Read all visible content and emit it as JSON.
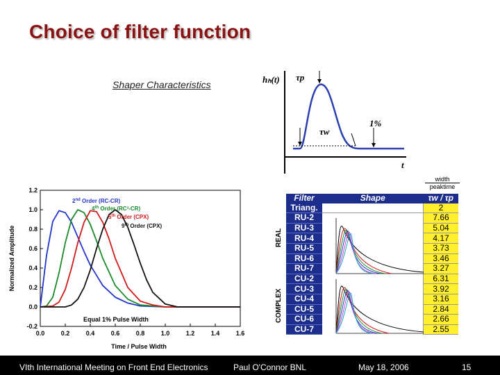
{
  "slide": {
    "title": "Choice of  filter function",
    "shaper_label": "Shaper Characteristics"
  },
  "pulse_diagram": {
    "ylabel": "hₕ(t)",
    "peak_symbol": "τp",
    "width_symbol": "τw",
    "percent_label": "1%",
    "xlabel": "t"
  },
  "chart_data": {
    "type": "line",
    "xlabel": "Time / Pulse Width",
    "ylabel": "Normalized Amplitude",
    "xlim": [
      0.0,
      1.6
    ],
    "ylim": [
      -0.2,
      1.2
    ],
    "x_ticks": [
      "0.0",
      "0.2",
      "0.4",
      "0.6",
      "0.8",
      "1.0",
      "1.2",
      "1.4",
      "1.6"
    ],
    "y_ticks": [
      "-0.2",
      "0.0",
      "0.2",
      "0.4",
      "0.6",
      "0.8",
      "1.0",
      "1.2"
    ],
    "annotation": "Equal 1% Pulse Width",
    "grid": false,
    "series": [
      {
        "name": "2nd Order (RC-CR)",
        "color": "#2233cc",
        "x": [
          0.0,
          0.05,
          0.1,
          0.15,
          0.2,
          0.25,
          0.3,
          0.35,
          0.4,
          0.5,
          0.6,
          0.7,
          0.8,
          1.0,
          1.2,
          1.6
        ],
        "y": [
          0.0,
          0.53,
          0.88,
          0.99,
          0.97,
          0.87,
          0.72,
          0.57,
          0.43,
          0.22,
          0.1,
          0.04,
          0.01,
          0.0,
          0.0,
          0.0
        ]
      },
      {
        "name": "4th Order (RC³-CR)",
        "color": "#1a8a2a",
        "x": [
          0.0,
          0.05,
          0.1,
          0.15,
          0.2,
          0.25,
          0.3,
          0.35,
          0.4,
          0.45,
          0.5,
          0.6,
          0.7,
          0.8,
          0.9,
          1.0,
          1.2,
          1.6
        ],
        "y": [
          0.0,
          0.01,
          0.1,
          0.35,
          0.66,
          0.9,
          1.0,
          0.97,
          0.85,
          0.68,
          0.5,
          0.22,
          0.08,
          0.02,
          0.01,
          0.0,
          0.0,
          0.0
        ]
      },
      {
        "name": "5th Order (CPX)",
        "color": "#d11a1a",
        "x": [
          0.0,
          0.1,
          0.15,
          0.2,
          0.25,
          0.3,
          0.35,
          0.4,
          0.45,
          0.5,
          0.55,
          0.6,
          0.7,
          0.8,
          0.9,
          1.0,
          1.2,
          1.6
        ],
        "y": [
          0.0,
          0.01,
          0.05,
          0.18,
          0.4,
          0.66,
          0.87,
          0.99,
          0.98,
          0.87,
          0.7,
          0.5,
          0.2,
          0.06,
          0.02,
          0.0,
          0.0,
          0.0
        ]
      },
      {
        "name": "9th Order (CPX)",
        "color": "#111111",
        "x": [
          0.0,
          0.2,
          0.25,
          0.3,
          0.35,
          0.4,
          0.45,
          0.5,
          0.55,
          0.6,
          0.65,
          0.7,
          0.75,
          0.8,
          0.85,
          0.9,
          1.0,
          1.1,
          1.2,
          1.6
        ],
        "y": [
          0.0,
          0.0,
          0.02,
          0.08,
          0.2,
          0.38,
          0.6,
          0.8,
          0.95,
          1.0,
          0.95,
          0.82,
          0.64,
          0.45,
          0.28,
          0.15,
          0.03,
          0.0,
          0.0,
          0.0
        ]
      }
    ]
  },
  "legend_labels": [
    {
      "order": "2",
      "sup": "nd",
      "rest": " Order (RC-CR)",
      "color": "#2233cc"
    },
    {
      "order": "4",
      "sup": "th",
      "rest": " Order (RC³-CR)",
      "color": "#1a8a2a"
    },
    {
      "order": "5",
      "sup": "th",
      "rest": " Order (CPX)",
      "color": "#d11a1a"
    },
    {
      "order": "9",
      "sup": "th",
      "rest": " Order (CPX)",
      "color": "#111111"
    }
  ],
  "table": {
    "width_peak_header": {
      "top": "width",
      "bottom": "peaktime"
    },
    "headers": [
      "Filter",
      "Shape",
      "τw / τp"
    ],
    "group_labels": [
      "REAL",
      "COMPLEX"
    ],
    "rows": [
      {
        "filter": "Triang.",
        "ratio": "2"
      },
      {
        "filter": "RU-2",
        "ratio": "7.66"
      },
      {
        "filter": "RU-3",
        "ratio": "5.04"
      },
      {
        "filter": "RU-4",
        "ratio": "4.17"
      },
      {
        "filter": "RU-5",
        "ratio": "3.73"
      },
      {
        "filter": "RU-6",
        "ratio": "3.46"
      },
      {
        "filter": "RU-7",
        "ratio": "3.27"
      },
      {
        "filter": "CU-2",
        "ratio": "6.31"
      },
      {
        "filter": "CU-3",
        "ratio": "3.92"
      },
      {
        "filter": "CU-4",
        "ratio": "3.16"
      },
      {
        "filter": "CU-5",
        "ratio": "2.84"
      },
      {
        "filter": "CU-6",
        "ratio": "2.66"
      },
      {
        "filter": "CU-7",
        "ratio": "2.55"
      }
    ]
  },
  "footer": {
    "conference": "VIth International Meeting on Front End Electronics",
    "author": "Paul O'Connor BNL",
    "date": "May 18, 2006",
    "page": "15"
  }
}
